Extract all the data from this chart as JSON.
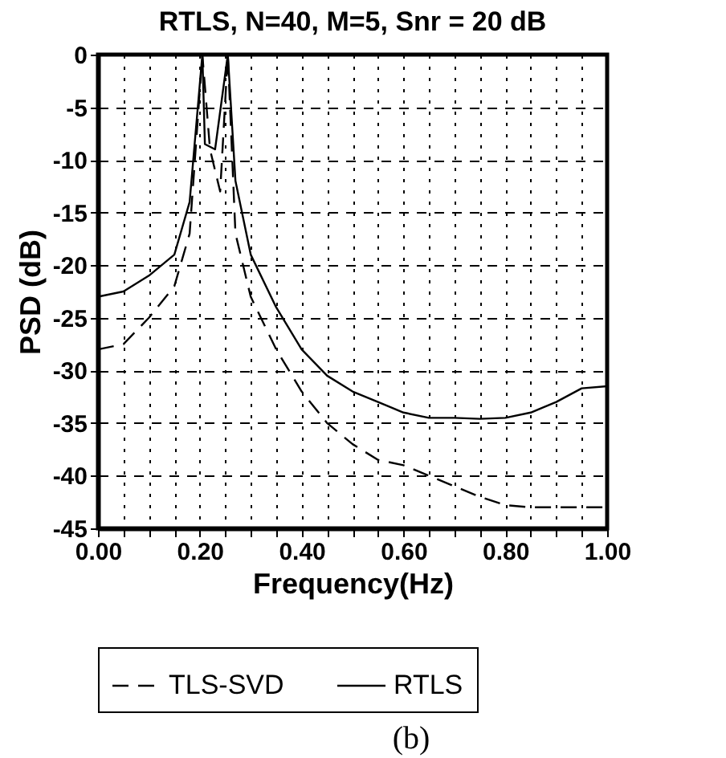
{
  "chart_data": {
    "type": "line",
    "title": "RTLS, N=40, M=5, Snr = 20 dB",
    "xlabel": "Frequency(Hz)",
    "ylabel": "PSD  (dB)",
    "xlim": [
      0,
      1
    ],
    "ylim": [
      -45,
      0
    ],
    "xticks": [
      {
        "value": 0,
        "label": "0.00"
      },
      {
        "value": 0.05,
        "label": null
      },
      {
        "value": 0.1,
        "label": null
      },
      {
        "value": 0.15,
        "label": null
      },
      {
        "value": 0.2,
        "label": "0.20"
      },
      {
        "value": 0.25,
        "label": null
      },
      {
        "value": 0.3,
        "label": null
      },
      {
        "value": 0.35,
        "label": null
      },
      {
        "value": 0.4,
        "label": "0.40"
      },
      {
        "value": 0.45,
        "label": null
      },
      {
        "value": 0.5,
        "label": null
      },
      {
        "value": 0.55,
        "label": null
      },
      {
        "value": 0.6,
        "label": "0.60"
      },
      {
        "value": 0.65,
        "label": null
      },
      {
        "value": 0.7,
        "label": null
      },
      {
        "value": 0.75,
        "label": null
      },
      {
        "value": 0.8,
        "label": "0.80"
      },
      {
        "value": 0.85,
        "label": null
      },
      {
        "value": 0.9,
        "label": null
      },
      {
        "value": 0.95,
        "label": null
      },
      {
        "value": 1,
        "label": "1.00"
      }
    ],
    "yticks": [
      0,
      -5,
      -10,
      -15,
      -20,
      -25,
      -30,
      -35,
      -40,
      -45
    ],
    "grid": true,
    "legend": "bottom",
    "marker": "none",
    "series": [
      {
        "name": "TLS-SVD",
        "color": "#000000",
        "line_style": "dashed",
        "x": [
          0,
          0.05,
          0.1,
          0.15,
          0.18,
          0.205,
          0.22,
          0.24,
          0.255,
          0.27,
          0.3,
          0.35,
          0.4,
          0.45,
          0.5,
          0.55,
          0.6,
          0.65,
          0.7,
          0.75,
          0.8,
          0.85,
          0.9,
          1
        ],
        "values": [
          -28,
          -27.5,
          -25,
          -22,
          -17,
          0,
          -9,
          -13,
          0,
          -17,
          -23,
          -28,
          -32,
          -35,
          -37,
          -38.5,
          -39,
          -40,
          -41,
          -42,
          -42.8,
          -43,
          -43,
          -43
        ]
      },
      {
        "name": "RTLS",
        "color": "#000000",
        "line_style": "solid",
        "x": [
          0,
          0.05,
          0.1,
          0.15,
          0.18,
          0.205,
          0.21,
          0.23,
          0.255,
          0.27,
          0.3,
          0.35,
          0.4,
          0.45,
          0.5,
          0.55,
          0.6,
          0.65,
          0.7,
          0.75,
          0.8,
          0.85,
          0.9,
          0.95,
          1
        ],
        "values": [
          -23,
          -22.5,
          -21,
          -19,
          -14,
          0,
          -8.5,
          -9,
          0,
          -12,
          -19,
          -24,
          -28,
          -30.5,
          -32,
          -33,
          -34,
          -34.5,
          -34.5,
          -34.6,
          -34.5,
          -34,
          -33,
          -31.7,
          -31.5
        ]
      }
    ],
    "annotations": [
      "(b)"
    ]
  }
}
